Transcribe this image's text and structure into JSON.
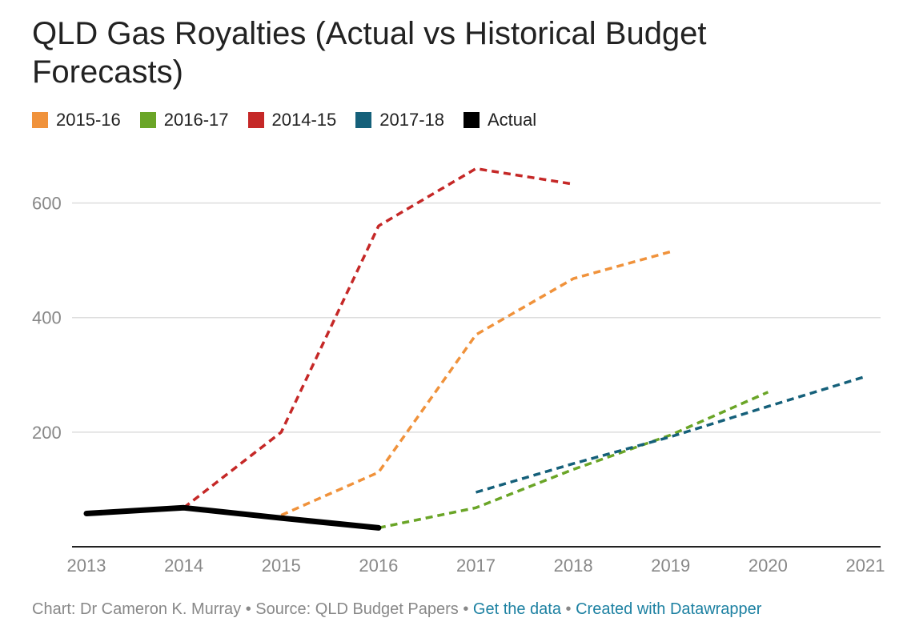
{
  "title": "QLD Gas Royalties (Actual vs Historical Budget Forecasts)",
  "colors": {
    "s2015": "#f0923b",
    "s2016": "#6aa527",
    "s2014": "#c52827",
    "s2017": "#15607a",
    "actual": "#000000",
    "grid": "#dddddd",
    "axis": "#222222",
    "link": "#1d81a2"
  },
  "legend": [
    {
      "label": "2015-16",
      "color": "#f0923b"
    },
    {
      "label": "2016-17",
      "color": "#6aa527"
    },
    {
      "label": "2014-15",
      "color": "#c52827"
    },
    {
      "label": "2017-18",
      "color": "#15607a"
    },
    {
      "label": "Actual",
      "color": "#000000"
    }
  ],
  "footer": {
    "credit": "Chart: Dr Cameron K. Murray",
    "separator": " • ",
    "source": "Source: QLD Budget Papers",
    "get_data": "Get the data",
    "created_with": "Created with Datawrapper"
  },
  "chart_data": {
    "type": "line",
    "title": "QLD Gas Royalties (Actual vs Historical Budget Forecasts)",
    "xlabel": "",
    "ylabel": "",
    "xlim": [
      2013,
      2021
    ],
    "ylim": [
      0,
      660
    ],
    "x_ticks": [
      "2013",
      "2014",
      "2015",
      "2016",
      "2017",
      "2018",
      "2019",
      "2020",
      "2021"
    ],
    "y_ticks": [
      "200",
      "400",
      "600"
    ],
    "y_tick_values": [
      200,
      400,
      600
    ],
    "grid": true,
    "legend_position": "top-left",
    "series": [
      {
        "name": "2015-16",
        "style": "dashed",
        "x": [
          2015,
          2016,
          2017,
          2018,
          2019
        ],
        "values": [
          55,
          130,
          370,
          468,
          515
        ]
      },
      {
        "name": "2016-17",
        "style": "dashed",
        "x": [
          2016,
          2017,
          2018,
          2019,
          2020
        ],
        "values": [
          33,
          68,
          135,
          195,
          270
        ]
      },
      {
        "name": "2014-15",
        "style": "dashed",
        "x": [
          2014,
          2015,
          2016,
          2017,
          2018
        ],
        "values": [
          68,
          200,
          560,
          660,
          633
        ]
      },
      {
        "name": "2017-18",
        "style": "dashed",
        "x": [
          2017,
          2018,
          2019,
          2020,
          2021
        ],
        "values": [
          95,
          145,
          192,
          245,
          297
        ]
      },
      {
        "name": "Actual",
        "style": "solid",
        "x": [
          2013,
          2014,
          2015,
          2016
        ],
        "values": [
          58,
          68,
          50,
          33
        ]
      }
    ]
  }
}
